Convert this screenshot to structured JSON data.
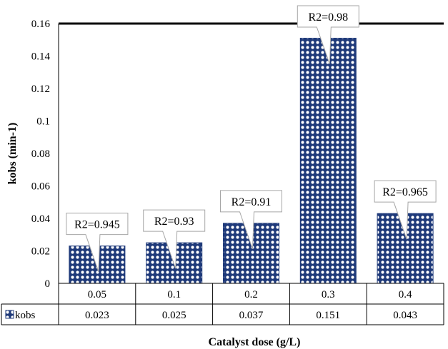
{
  "chart_data": {
    "type": "bar",
    "categories": [
      "0.05",
      "0.1",
      "0.2",
      "0.3",
      "0.4"
    ],
    "series": [
      {
        "name": "kobs",
        "values": [
          0.023,
          0.025,
          0.037,
          0.151,
          0.043
        ]
      }
    ],
    "value_labels": [
      "0.023",
      "0.025",
      "0.037",
      "0.151",
      "0.043"
    ],
    "annotations": [
      "R2=0.945",
      "R2=0.93",
      "R2=0.91",
      "R2=0.98",
      "R2=0.965"
    ],
    "ylabel": "kobs (min-1)",
    "xlabel": "Catalyst dose (g/L)",
    "ylim": [
      0,
      0.16
    ],
    "yticks": [
      "0",
      "0.02",
      "0.04",
      "0.06",
      "0.08",
      "0.1",
      "0.12",
      "0.14",
      "0.16"
    ],
    "grid": false,
    "legend": "data-table",
    "colors": {
      "bar": "#1f3a7a",
      "dots": "#ffffff"
    }
  }
}
